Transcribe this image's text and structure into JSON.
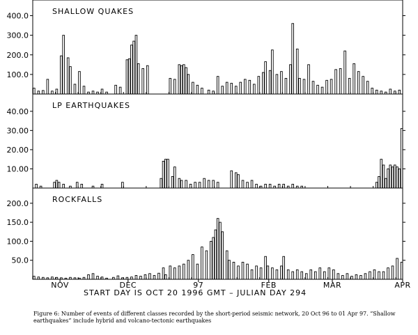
{
  "figure": {
    "start_label": "START DAY IS OCT 20 1996 GMT   –  JULIAN DAY 294",
    "caption": "Figure 6:  Number of events of different classes recorded by the short-period seismic network, 20 Oct 96 to 01 Apr 97.  “Shallow earthquakes” include hybrid and volcano-tectonic earthquakes"
  },
  "chart_data": [
    {
      "type": "bar",
      "title": "SHALLOW QUAKES",
      "x_unit": "day since 20 Oct 1996",
      "xlim": [
        0,
        163
      ],
      "ylim": [
        0,
        480
      ],
      "yticks": [
        100,
        200,
        300,
        400
      ],
      "ytick_labels": [
        "100.0",
        "200.0",
        "300.0",
        "400.0"
      ],
      "bins": [
        {
          "day": 0,
          "value": 30
        },
        {
          "day": 2,
          "value": 15
        },
        {
          "day": 4,
          "value": 18
        },
        {
          "day": 6,
          "value": 75
        },
        {
          "day": 8,
          "value": 15
        },
        {
          "day": 10,
          "value": 25
        },
        {
          "day": 12,
          "value": 195
        },
        {
          "day": 13,
          "value": 300
        },
        {
          "day": 15,
          "value": 185
        },
        {
          "day": 16,
          "value": 140
        },
        {
          "day": 18,
          "value": 50
        },
        {
          "day": 20,
          "value": 115
        },
        {
          "day": 22,
          "value": 40
        },
        {
          "day": 24,
          "value": 10
        },
        {
          "day": 26,
          "value": 15
        },
        {
          "day": 28,
          "value": 10
        },
        {
          "day": 30,
          "value": 25
        },
        {
          "day": 32,
          "value": 10
        },
        {
          "day": 36,
          "value": 45
        },
        {
          "day": 38,
          "value": 35
        },
        {
          "day": 41,
          "value": 175
        },
        {
          "day": 42,
          "value": 180
        },
        {
          "day": 43,
          "value": 250
        },
        {
          "day": 44,
          "value": 270
        },
        {
          "day": 45,
          "value": 300
        },
        {
          "day": 46,
          "value": 155
        },
        {
          "day": 48,
          "value": 130
        },
        {
          "day": 50,
          "value": 145
        },
        {
          "day": 60,
          "value": 80
        },
        {
          "day": 62,
          "value": 75
        },
        {
          "day": 64,
          "value": 150
        },
        {
          "day": 65,
          "value": 145
        },
        {
          "day": 66,
          "value": 150
        },
        {
          "day": 67,
          "value": 135
        },
        {
          "day": 68,
          "value": 100
        },
        {
          "day": 70,
          "value": 60
        },
        {
          "day": 72,
          "value": 45
        },
        {
          "day": 74,
          "value": 30
        },
        {
          "day": 77,
          "value": 20
        },
        {
          "day": 79,
          "value": 15
        },
        {
          "day": 81,
          "value": 90
        },
        {
          "day": 83,
          "value": 40
        },
        {
          "day": 85,
          "value": 60
        },
        {
          "day": 87,
          "value": 55
        },
        {
          "day": 89,
          "value": 40
        },
        {
          "day": 91,
          "value": 60
        },
        {
          "day": 93,
          "value": 75
        },
        {
          "day": 95,
          "value": 70
        },
        {
          "day": 97,
          "value": 50
        },
        {
          "day": 99,
          "value": 90
        },
        {
          "day": 101,
          "value": 110
        },
        {
          "day": 102,
          "value": 165
        },
        {
          "day": 104,
          "value": 120
        },
        {
          "day": 105,
          "value": 225
        },
        {
          "day": 107,
          "value": 100
        },
        {
          "day": 109,
          "value": 115
        },
        {
          "day": 111,
          "value": 80
        },
        {
          "day": 113,
          "value": 150
        },
        {
          "day": 114,
          "value": 360
        },
        {
          "day": 116,
          "value": 230
        },
        {
          "day": 117,
          "value": 80
        },
        {
          "day": 119,
          "value": 75
        },
        {
          "day": 121,
          "value": 150
        },
        {
          "day": 123,
          "value": 65
        },
        {
          "day": 125,
          "value": 45
        },
        {
          "day": 127,
          "value": 35
        },
        {
          "day": 129,
          "value": 70
        },
        {
          "day": 131,
          "value": 75
        },
        {
          "day": 133,
          "value": 125
        },
        {
          "day": 135,
          "value": 130
        },
        {
          "day": 137,
          "value": 220
        },
        {
          "day": 139,
          "value": 80
        },
        {
          "day": 141,
          "value": 155
        },
        {
          "day": 143,
          "value": 115
        },
        {
          "day": 145,
          "value": 90
        },
        {
          "day": 147,
          "value": 65
        },
        {
          "day": 149,
          "value": 30
        },
        {
          "day": 151,
          "value": 20
        },
        {
          "day": 153,
          "value": 15
        },
        {
          "day": 155,
          "value": 10
        },
        {
          "day": 157,
          "value": 25
        },
        {
          "day": 159,
          "value": 15
        },
        {
          "day": 161,
          "value": 20
        }
      ]
    },
    {
      "type": "bar",
      "title": "LP EARTHQUAKES",
      "x_unit": "day since 20 Oct 1996",
      "xlim": [
        0,
        163
      ],
      "ylim": [
        0,
        49
      ],
      "yticks": [
        10,
        20,
        30,
        40
      ],
      "ytick_labels": [
        "10.00",
        "20.00",
        "30.00",
        "40.00"
      ],
      "bins": [
        {
          "day": 1,
          "value": 2
        },
        {
          "day": 3,
          "value": 1
        },
        {
          "day": 9,
          "value": 3
        },
        {
          "day": 10,
          "value": 4
        },
        {
          "day": 11,
          "value": 3
        },
        {
          "day": 13,
          "value": 2
        },
        {
          "day": 16,
          "value": 1
        },
        {
          "day": 19,
          "value": 3
        },
        {
          "day": 21,
          "value": 2
        },
        {
          "day": 26,
          "value": 1
        },
        {
          "day": 30,
          "value": 2
        },
        {
          "day": 39,
          "value": 3
        },
        {
          "day": 56,
          "value": 5
        },
        {
          "day": 57,
          "value": 14
        },
        {
          "day": 58,
          "value": 15
        },
        {
          "day": 59,
          "value": 15
        },
        {
          "day": 61,
          "value": 6
        },
        {
          "day": 62,
          "value": 11
        },
        {
          "day": 64,
          "value": 5
        },
        {
          "day": 65,
          "value": 4
        },
        {
          "day": 67,
          "value": 4
        },
        {
          "day": 69,
          "value": 2
        },
        {
          "day": 71,
          "value": 3
        },
        {
          "day": 73,
          "value": 3
        },
        {
          "day": 75,
          "value": 5
        },
        {
          "day": 77,
          "value": 4
        },
        {
          "day": 79,
          "value": 4
        },
        {
          "day": 81,
          "value": 3
        },
        {
          "day": 87,
          "value": 9
        },
        {
          "day": 89,
          "value": 8
        },
        {
          "day": 90,
          "value": 7
        },
        {
          "day": 92,
          "value": 4
        },
        {
          "day": 94,
          "value": 3
        },
        {
          "day": 96,
          "value": 4
        },
        {
          "day": 98,
          "value": 2
        },
        {
          "day": 100,
          "value": 1
        },
        {
          "day": 102,
          "value": 2
        },
        {
          "day": 104,
          "value": 2
        },
        {
          "day": 106,
          "value": 1
        },
        {
          "day": 108,
          "value": 2
        },
        {
          "day": 110,
          "value": 2
        },
        {
          "day": 112,
          "value": 1
        },
        {
          "day": 114,
          "value": 2
        },
        {
          "day": 116,
          "value": 1
        },
        {
          "day": 118,
          "value": 1
        },
        {
          "day": 151,
          "value": 3
        },
        {
          "day": 152,
          "value": 6
        },
        {
          "day": 153,
          "value": 15
        },
        {
          "day": 154,
          "value": 12
        },
        {
          "day": 155,
          "value": 5
        },
        {
          "day": 156,
          "value": 10
        },
        {
          "day": 157,
          "value": 12
        },
        {
          "day": 158,
          "value": 11
        },
        {
          "day": 159,
          "value": 12
        },
        {
          "day": 160,
          "value": 11
        },
        {
          "day": 161,
          "value": 10
        },
        {
          "day": 162,
          "value": 31
        }
      ]
    },
    {
      "type": "bar",
      "title": "ROCKFALLS",
      "x_unit": "day since 20 Oct 1996",
      "xlim": [
        0,
        163
      ],
      "ylim": [
        0,
        240
      ],
      "yticks": [
        50,
        100,
        150,
        200
      ],
      "ytick_labels": [
        "50.0",
        "100.0",
        "150.0",
        "200.0"
      ],
      "x_ticks": [
        {
          "day": 12,
          "label": "NOV"
        },
        {
          "day": 42,
          "label": "DEC"
        },
        {
          "day": 73,
          "label": "97"
        },
        {
          "day": 104,
          "label": "FEB"
        },
        {
          "day": 132,
          "label": "MAR"
        },
        {
          "day": 163,
          "label": "APR"
        }
      ],
      "bins": [
        {
          "day": 0,
          "value": 8
        },
        {
          "day": 2,
          "value": 6
        },
        {
          "day": 4,
          "value": 5
        },
        {
          "day": 6,
          "value": 4
        },
        {
          "day": 8,
          "value": 6
        },
        {
          "day": 10,
          "value": 5
        },
        {
          "day": 12,
          "value": 4
        },
        {
          "day": 14,
          "value": 3
        },
        {
          "day": 16,
          "value": 5
        },
        {
          "day": 18,
          "value": 4
        },
        {
          "day": 20,
          "value": 3
        },
        {
          "day": 22,
          "value": 5
        },
        {
          "day": 24,
          "value": 12
        },
        {
          "day": 26,
          "value": 15
        },
        {
          "day": 28,
          "value": 8
        },
        {
          "day": 30,
          "value": 6
        },
        {
          "day": 32,
          "value": 3
        },
        {
          "day": 35,
          "value": 5
        },
        {
          "day": 37,
          "value": 9
        },
        {
          "day": 39,
          "value": 4
        },
        {
          "day": 41,
          "value": 5
        },
        {
          "day": 43,
          "value": 6
        },
        {
          "day": 45,
          "value": 10
        },
        {
          "day": 47,
          "value": 8
        },
        {
          "day": 49,
          "value": 12
        },
        {
          "day": 51,
          "value": 15
        },
        {
          "day": 53,
          "value": 10
        },
        {
          "day": 55,
          "value": 16
        },
        {
          "day": 57,
          "value": 30
        },
        {
          "day": 58,
          "value": 12
        },
        {
          "day": 60,
          "value": 35
        },
        {
          "day": 62,
          "value": 30
        },
        {
          "day": 64,
          "value": 35
        },
        {
          "day": 66,
          "value": 40
        },
        {
          "day": 68,
          "value": 50
        },
        {
          "day": 70,
          "value": 65
        },
        {
          "day": 72,
          "value": 40
        },
        {
          "day": 74,
          "value": 85
        },
        {
          "day": 76,
          "value": 75
        },
        {
          "day": 78,
          "value": 100
        },
        {
          "day": 79,
          "value": 110
        },
        {
          "day": 80,
          "value": 130
        },
        {
          "day": 81,
          "value": 160
        },
        {
          "day": 82,
          "value": 150
        },
        {
          "day": 83,
          "value": 125
        },
        {
          "day": 85,
          "value": 75
        },
        {
          "day": 86,
          "value": 50
        },
        {
          "day": 88,
          "value": 45
        },
        {
          "day": 90,
          "value": 35
        },
        {
          "day": 92,
          "value": 45
        },
        {
          "day": 94,
          "value": 40
        },
        {
          "day": 96,
          "value": 25
        },
        {
          "day": 98,
          "value": 35
        },
        {
          "day": 100,
          "value": 30
        },
        {
          "day": 102,
          "value": 60
        },
        {
          "day": 103,
          "value": 35
        },
        {
          "day": 105,
          "value": 30
        },
        {
          "day": 107,
          "value": 25
        },
        {
          "day": 109,
          "value": 35
        },
        {
          "day": 110,
          "value": 60
        },
        {
          "day": 112,
          "value": 25
        },
        {
          "day": 114,
          "value": 20
        },
        {
          "day": 116,
          "value": 25
        },
        {
          "day": 118,
          "value": 20
        },
        {
          "day": 120,
          "value": 15
        },
        {
          "day": 122,
          "value": 25
        },
        {
          "day": 124,
          "value": 20
        },
        {
          "day": 126,
          "value": 30
        },
        {
          "day": 128,
          "value": 20
        },
        {
          "day": 130,
          "value": 30
        },
        {
          "day": 132,
          "value": 25
        },
        {
          "day": 134,
          "value": 15
        },
        {
          "day": 136,
          "value": 10
        },
        {
          "day": 138,
          "value": 15
        },
        {
          "day": 140,
          "value": 8
        },
        {
          "day": 142,
          "value": 12
        },
        {
          "day": 144,
          "value": 10
        },
        {
          "day": 146,
          "value": 15
        },
        {
          "day": 148,
          "value": 20
        },
        {
          "day": 150,
          "value": 25
        },
        {
          "day": 152,
          "value": 20
        },
        {
          "day": 154,
          "value": 20
        },
        {
          "day": 156,
          "value": 30
        },
        {
          "day": 158,
          "value": 35
        },
        {
          "day": 160,
          "value": 55
        },
        {
          "day": 162,
          "value": 45
        }
      ]
    }
  ]
}
